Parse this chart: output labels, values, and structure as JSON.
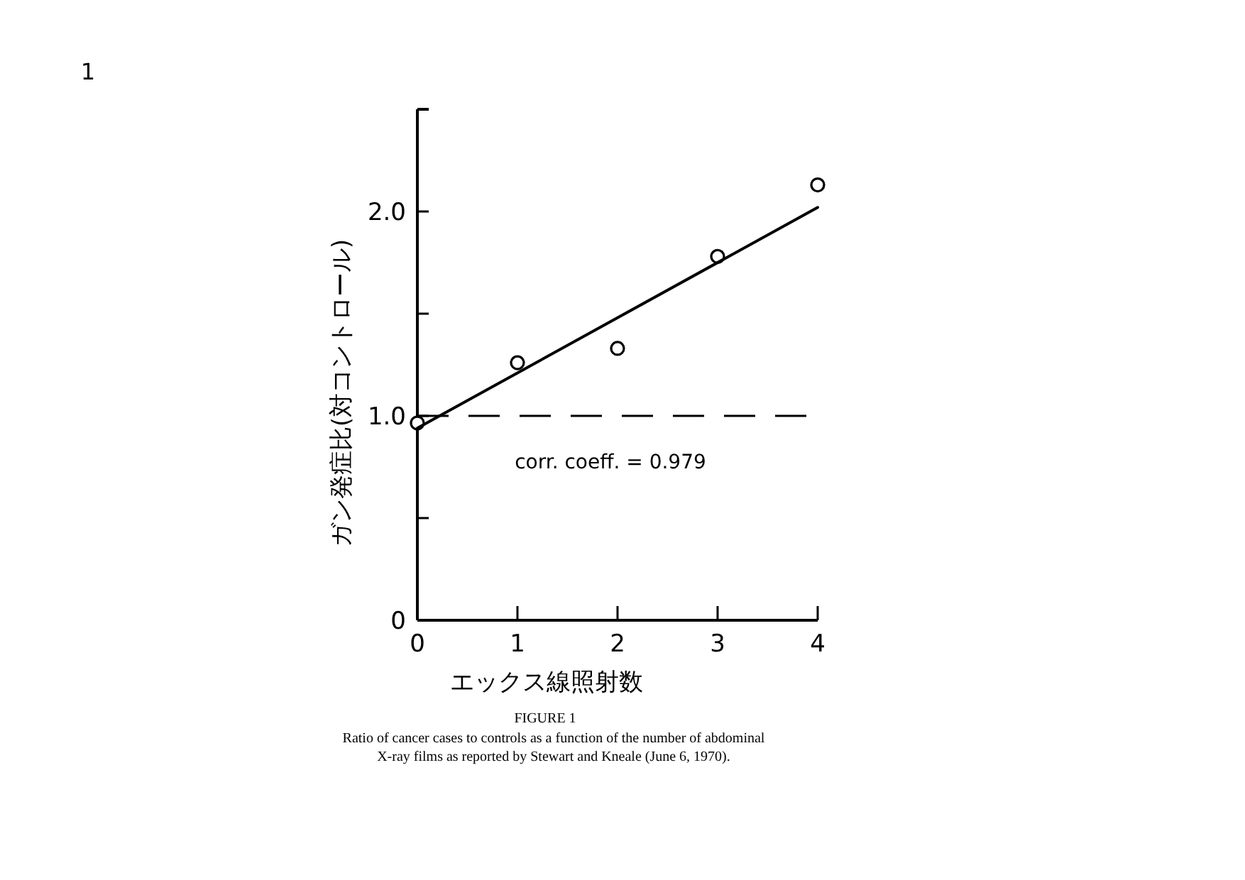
{
  "chart_data": {
    "type": "scatter",
    "xlabel": "エックス線照射数",
    "ylabel": "ガン発症比(対コントロール)",
    "xlim": [
      0,
      4
    ],
    "xticks": [
      0,
      1,
      2,
      3,
      4
    ],
    "ylim": [
      0,
      2.5
    ],
    "yticks": [
      0,
      {
        "value": 0.5,
        "label": null
      },
      {
        "value": 1,
        "label": "1.0"
      },
      {
        "value": 1.5,
        "label": null
      },
      {
        "value": 2,
        "label": "2.0"
      }
    ],
    "series": [
      {
        "color": "#000000",
        "marker": "circle",
        "x": [
          0,
          1,
          2,
          3,
          4
        ],
        "values": [
          0.965,
          1.26,
          1.33,
          1.78,
          2.13
        ]
      },
      {
        "type": "line",
        "color": "#000000",
        "x": [
          0,
          4
        ],
        "values": [
          0.94,
          2.02
        ],
        "marker": "none",
        "line_style": "solid"
      }
    ],
    "ref_lines": [
      {
        "axis": "y",
        "value": 1.0,
        "color": "#000000",
        "line_style": "dashed"
      }
    ],
    "annotations": [
      "1",
      "corr. coeff. = 0.979",
      "FIGURE 1",
      "Ratio of cancer cases to controls as a function of the number of abdominal X-ray films as reported by Stewart and Kneale (June 6, 1970)."
    ]
  }
}
